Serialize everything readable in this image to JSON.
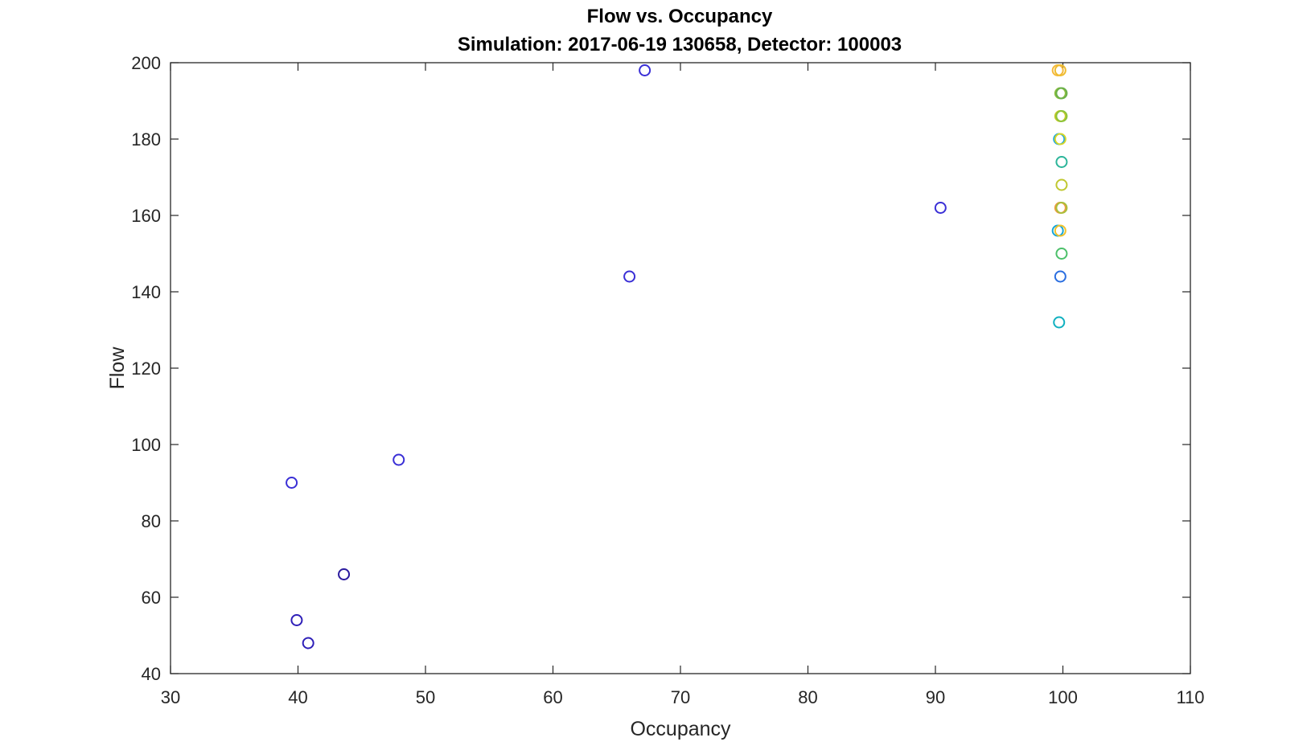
{
  "chart_data": {
    "type": "scatter",
    "title": "Flow vs. Occupancy",
    "subtitle": "Simulation:  2017-06-19 130658,  Detector:  100003",
    "xlabel": "Occupancy",
    "ylabel": "Flow",
    "xlim": [
      30,
      110
    ],
    "ylim": [
      40,
      200
    ],
    "xticks": [
      "30",
      "40",
      "50",
      "60",
      "70",
      "80",
      "90",
      "100",
      "110"
    ],
    "yticks": [
      "40",
      "60",
      "80",
      "100",
      "120",
      "140",
      "160",
      "180",
      "200"
    ],
    "grid": false,
    "points": [
      {
        "x": 39.5,
        "y": 90,
        "color": "#3a2fd6"
      },
      {
        "x": 39.9,
        "y": 54,
        "color": "#2e1fb8"
      },
      {
        "x": 40.8,
        "y": 48,
        "color": "#2e1fb8"
      },
      {
        "x": 43.6,
        "y": 66,
        "color": "#2a1a9e"
      },
      {
        "x": 47.9,
        "y": 96,
        "color": "#3a2fd6"
      },
      {
        "x": 66.0,
        "y": 144,
        "color": "#3a2fd6"
      },
      {
        "x": 67.2,
        "y": 198,
        "color": "#3a2fd6"
      },
      {
        "x": 90.4,
        "y": 162,
        "color": "#3a2fd6"
      },
      {
        "x": 99.6,
        "y": 198,
        "color": "#f5b83a"
      },
      {
        "x": 99.8,
        "y": 198,
        "color": "#eebc2e"
      },
      {
        "x": 99.8,
        "y": 192,
        "color": "#8cbe3e"
      },
      {
        "x": 99.9,
        "y": 192,
        "color": "#6ab04a"
      },
      {
        "x": 99.8,
        "y": 186,
        "color": "#c6c826"
      },
      {
        "x": 99.9,
        "y": 186,
        "color": "#8cc43a"
      },
      {
        "x": 99.7,
        "y": 180,
        "color": "#1aa6e0"
      },
      {
        "x": 99.8,
        "y": 180,
        "color": "#d6d62a"
      },
      {
        "x": 99.9,
        "y": 174,
        "color": "#2cb59a"
      },
      {
        "x": 99.9,
        "y": 168,
        "color": "#c0c830"
      },
      {
        "x": 99.8,
        "y": 162,
        "color": "#f09a40"
      },
      {
        "x": 99.9,
        "y": 162,
        "color": "#a8c03c"
      },
      {
        "x": 99.6,
        "y": 156,
        "color": "#16a6d8"
      },
      {
        "x": 99.8,
        "y": 156,
        "color": "#f0c22c"
      },
      {
        "x": 99.9,
        "y": 150,
        "color": "#4cc06a"
      },
      {
        "x": 99.8,
        "y": 144,
        "color": "#2a6ee0"
      },
      {
        "x": 99.7,
        "y": 132,
        "color": "#10b0c0"
      }
    ]
  }
}
